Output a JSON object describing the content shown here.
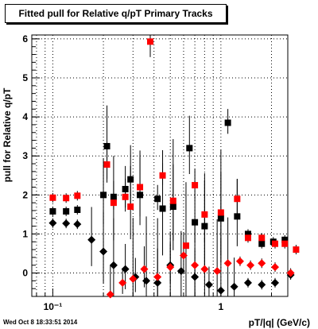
{
  "title": "Fitted pull for Relative q/pT  Primary Tracks",
  "ylabel": "pull for Relative q/pT",
  "xlabel": "pT/|q| (GeV/c)",
  "timestamp": "Wed Oct  8 18:33:51 2014",
  "colors": {
    "series_black": "#000000",
    "series_red": "#ff0000",
    "grid": "#000000"
  },
  "chart_data": {
    "type": "scatter",
    "title": "Fitted pull for Relative q/pT  Primary Tracks",
    "xlabel": "pT/|q| (GeV/c)",
    "ylabel": "pull for Relative q/pT",
    "xscale": "log",
    "xlim": [
      0.075,
      2.5
    ],
    "ylim": [
      -0.6,
      6.1
    ],
    "grid": true,
    "x_tick_labels": [
      {
        "x": 0.1,
        "label": "10⁻¹"
      },
      {
        "x": 1,
        "label": "1"
      }
    ],
    "y_tick_labels": [
      "0",
      "1",
      "2",
      "3",
      "4",
      "5",
      "6"
    ],
    "series": [
      {
        "marker": "square",
        "color": "#000000",
        "points": [
          {
            "x": 0.1,
            "y": 1.58
          },
          {
            "x": 0.12,
            "y": 1.58
          },
          {
            "x": 0.14,
            "y": 1.62
          },
          {
            "x": 0.2,
            "y": 2.0
          },
          {
            "x": 0.21,
            "y": 3.25
          },
          {
            "x": 0.23,
            "y": 1.95
          },
          {
            "x": 0.27,
            "y": 2.15
          },
          {
            "x": 0.29,
            "y": 2.4
          },
          {
            "x": 0.33,
            "y": 2.0
          },
          {
            "x": 0.42,
            "y": 1.9
          },
          {
            "x": 0.45,
            "y": 1.65
          },
          {
            "x": 0.52,
            "y": 1.7
          },
          {
            "x": 0.65,
            "y": 3.2
          },
          {
            "x": 0.7,
            "y": 1.3
          },
          {
            "x": 0.8,
            "y": 1.2
          },
          {
            "x": 1.0,
            "y": 1.4
          },
          {
            "x": 1.1,
            "y": 3.85
          },
          {
            "x": 1.25,
            "y": 1.45
          },
          {
            "x": 1.45,
            "y": 1.0
          },
          {
            "x": 1.75,
            "y": 0.75
          },
          {
            "x": 2.05,
            "y": 0.8
          },
          {
            "x": 2.4,
            "y": 0.85
          }
        ]
      },
      {
        "marker": "square",
        "color": "#ff0000",
        "points": [
          {
            "x": 0.1,
            "y": 1.93
          },
          {
            "x": 0.12,
            "y": 1.92
          },
          {
            "x": 0.14,
            "y": 1.98
          },
          {
            "x": 0.21,
            "y": 2.78
          },
          {
            "x": 0.23,
            "y": 1.8
          },
          {
            "x": 0.27,
            "y": 1.95
          },
          {
            "x": 0.29,
            "y": 1.7
          },
          {
            "x": 0.33,
            "y": 2.2
          },
          {
            "x": 0.38,
            "y": 5.93
          },
          {
            "x": 0.45,
            "y": 2.5
          },
          {
            "x": 0.52,
            "y": 1.85
          },
          {
            "x": 0.62,
            "y": 0.7
          },
          {
            "x": 0.7,
            "y": 2.25
          },
          {
            "x": 0.8,
            "y": 1.5
          },
          {
            "x": 1.0,
            "y": 1.55
          },
          {
            "x": 1.25,
            "y": 1.9
          },
          {
            "x": 1.45,
            "y": 0.9
          },
          {
            "x": 1.75,
            "y": 0.9
          },
          {
            "x": 2.1,
            "y": 0.75
          },
          {
            "x": 2.4,
            "y": 0.75
          },
          {
            "x": 2.8,
            "y": 0.6
          }
        ]
      },
      {
        "marker": "diamond",
        "color": "#000000",
        "points": [
          {
            "x": 0.1,
            "y": 1.28
          },
          {
            "x": 0.12,
            "y": 1.27
          },
          {
            "x": 0.14,
            "y": 1.25
          },
          {
            "x": 0.17,
            "y": 0.85
          },
          {
            "x": 0.2,
            "y": 0.55
          },
          {
            "x": 0.23,
            "y": 0.2
          },
          {
            "x": 0.27,
            "y": 0.1
          },
          {
            "x": 0.31,
            "y": -0.1
          },
          {
            "x": 0.36,
            "y": -0.2
          },
          {
            "x": 0.42,
            "y": -0.25
          },
          {
            "x": 0.5,
            "y": 0.2
          },
          {
            "x": 0.58,
            "y": 0.05
          },
          {
            "x": 0.7,
            "y": -0.1
          },
          {
            "x": 0.85,
            "y": -0.3
          },
          {
            "x": 1.0,
            "y": -0.45
          },
          {
            "x": 1.2,
            "y": -0.35
          },
          {
            "x": 1.45,
            "y": -0.25
          },
          {
            "x": 1.75,
            "y": -0.3
          },
          {
            "x": 2.1,
            "y": -0.25
          },
          {
            "x": 2.6,
            "y": -0.05
          }
        ]
      },
      {
        "marker": "diamond",
        "color": "#ff0000",
        "points": [
          {
            "x": 0.22,
            "y": -0.55
          },
          {
            "x": 0.26,
            "y": -0.25
          },
          {
            "x": 0.3,
            "y": -0.15
          },
          {
            "x": 0.35,
            "y": 0.1
          },
          {
            "x": 0.42,
            "y": -0.1
          },
          {
            "x": 0.5,
            "y": 0.15
          },
          {
            "x": 0.6,
            "y": 0.45
          },
          {
            "x": 0.7,
            "y": 0.2
          },
          {
            "x": 0.8,
            "y": 0.1
          },
          {
            "x": 0.95,
            "y": 0.05
          },
          {
            "x": 1.1,
            "y": 0.25
          },
          {
            "x": 1.3,
            "y": 0.3
          },
          {
            "x": 1.5,
            "y": 0.2
          },
          {
            "x": 1.75,
            "y": 0.25
          },
          {
            "x": 2.1,
            "y": 0.15
          },
          {
            "x": 2.6,
            "y": 0.0
          }
        ]
      }
    ]
  }
}
